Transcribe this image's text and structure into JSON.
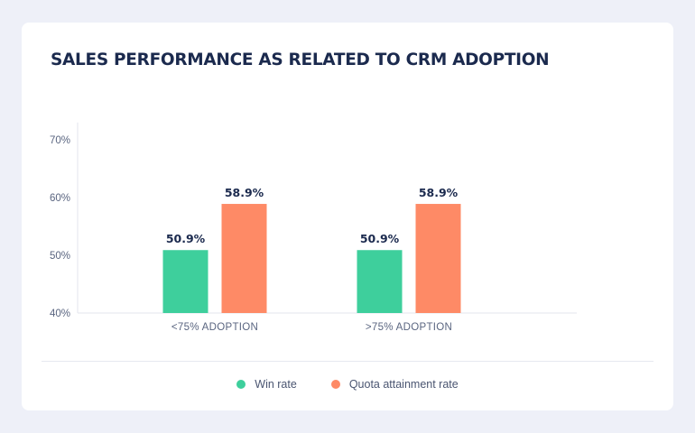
{
  "chart_data": {
    "type": "bar",
    "title": "SALES PERFORMANCE AS RELATED TO CRM ADOPTION",
    "categories": [
      "<75% ADOPTION",
      ">75% ADOPTION"
    ],
    "series": [
      {
        "name": "Win rate",
        "values": [
          50.9,
          50.9
        ],
        "labels": [
          "50.9%",
          "50.9%"
        ],
        "color": "#3ecf9c"
      },
      {
        "name": "Quota attainment rate",
        "values": [
          58.9,
          58.9
        ],
        "labels": [
          "58.9%",
          "58.9%"
        ],
        "color": "#fe8a66"
      }
    ],
    "ylim": [
      40,
      73
    ],
    "yticks": [
      40,
      50,
      60,
      70
    ],
    "ytick_labels": [
      "40%",
      "50%",
      "60%",
      "70%"
    ],
    "xlabel": "",
    "ylabel": "",
    "grid": false,
    "legend_position": "bottom-center"
  }
}
